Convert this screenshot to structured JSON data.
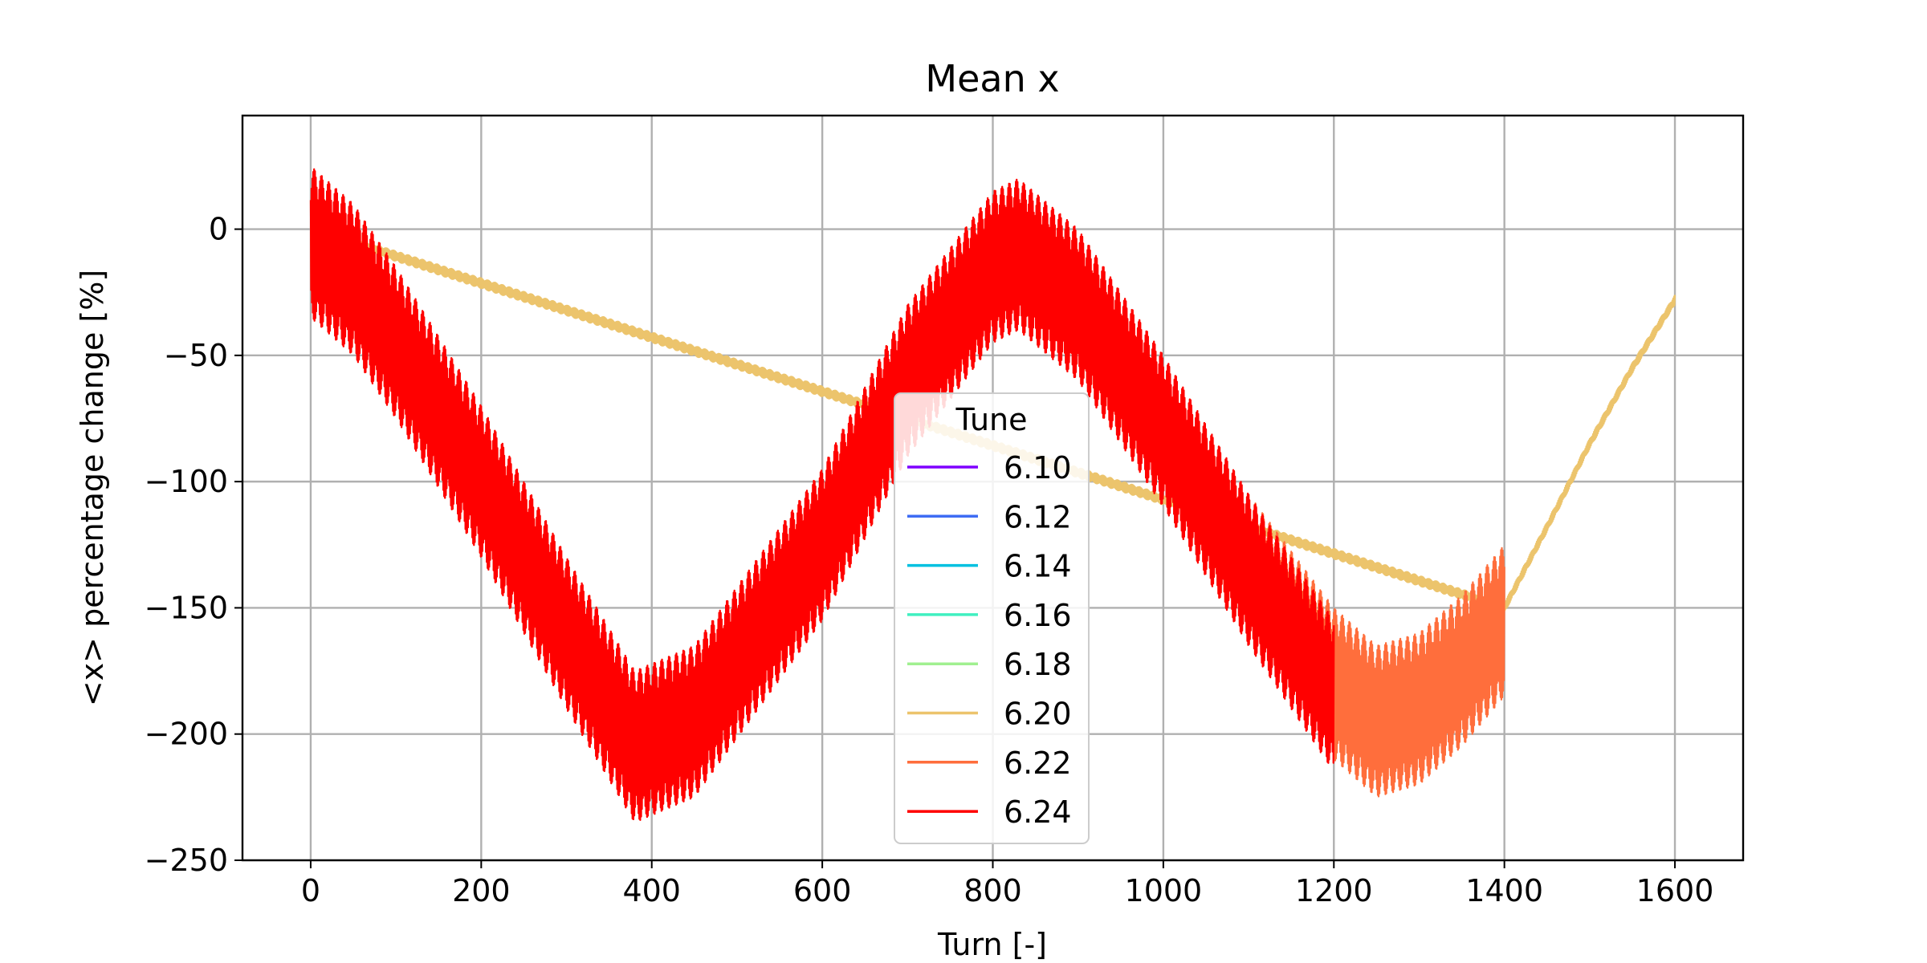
{
  "chart_data": {
    "type": "line",
    "title": "Mean x",
    "xlabel": "Turn [-]",
    "ylabel": "<x> percentage change [%]",
    "xlim": [
      -80,
      1680
    ],
    "ylim": [
      -250,
      45
    ],
    "xticks": [
      0,
      200,
      400,
      600,
      800,
      1000,
      1200,
      1400,
      1600
    ],
    "yticks": [
      -250,
      -200,
      -150,
      -100,
      -50,
      0
    ],
    "grid": true,
    "legend": {
      "title": "Tune",
      "placement": "bottom-center"
    },
    "series": [
      {
        "name": "6.10",
        "color": "#7f00ff",
        "turns": [
          0,
          0
        ],
        "amplitude": 0,
        "trend": [
          [
            0,
            0
          ],
          [
            0,
            0
          ]
        ]
      },
      {
        "name": "6.12",
        "color": "#3e6cf4",
        "turns": [
          0,
          0
        ],
        "amplitude": 0,
        "trend": [
          [
            0,
            0
          ],
          [
            0,
            0
          ]
        ]
      },
      {
        "name": "6.14",
        "color": "#00c0e0",
        "turns": [
          0,
          0
        ],
        "amplitude": 0,
        "trend": [
          [
            0,
            0
          ],
          [
            0,
            0
          ]
        ]
      },
      {
        "name": "6.16",
        "color": "#40f0c0",
        "turns": [
          0,
          0
        ],
        "amplitude": 0,
        "trend": [
          [
            0,
            0
          ],
          [
            0,
            0
          ]
        ]
      },
      {
        "name": "6.18",
        "color": "#a0f090",
        "turns": [
          0,
          0
        ],
        "amplitude": 0,
        "trend": [
          [
            0,
            0
          ],
          [
            0,
            0
          ]
        ]
      },
      {
        "name": "6.20",
        "color": "#ecc46c",
        "turns": [
          0,
          1600
        ],
        "amplitude": 2,
        "trend": [
          [
            0,
            0
          ],
          [
            1400,
            -150
          ],
          [
            1450,
            -118
          ],
          [
            1500,
            -85
          ],
          [
            1550,
            -55
          ],
          [
            1600,
            -28
          ]
        ]
      },
      {
        "name": "6.22",
        "color": "#ff6e3c",
        "turns": [
          0,
          1400
        ],
        "amplitude": 30,
        "trend": [
          [
            0,
            -5
          ],
          [
            50,
            -20
          ],
          [
            100,
            -45
          ],
          [
            200,
            -100
          ],
          [
            300,
            -160
          ],
          [
            380,
            -205
          ],
          [
            450,
            -195
          ],
          [
            600,
            -125
          ],
          [
            700,
            -60
          ],
          [
            800,
            -15
          ],
          [
            830,
            -10
          ],
          [
            900,
            -30
          ],
          [
            1000,
            -80
          ],
          [
            1100,
            -135
          ],
          [
            1200,
            -180
          ],
          [
            1250,
            -195
          ],
          [
            1300,
            -190
          ],
          [
            1350,
            -175
          ],
          [
            1400,
            -155
          ]
        ]
      },
      {
        "name": "6.24",
        "color": "#ff0000",
        "turns": [
          0,
          1200
        ],
        "amplitude": 30,
        "trend": [
          [
            0,
            -5
          ],
          [
            50,
            -20
          ],
          [
            100,
            -45
          ],
          [
            200,
            -100
          ],
          [
            300,
            -160
          ],
          [
            380,
            -205
          ],
          [
            450,
            -195
          ],
          [
            600,
            -125
          ],
          [
            700,
            -60
          ],
          [
            800,
            -15
          ],
          [
            830,
            -10
          ],
          [
            900,
            -30
          ],
          [
            1000,
            -80
          ],
          [
            1100,
            -135
          ],
          [
            1200,
            -185
          ]
        ]
      }
    ]
  }
}
